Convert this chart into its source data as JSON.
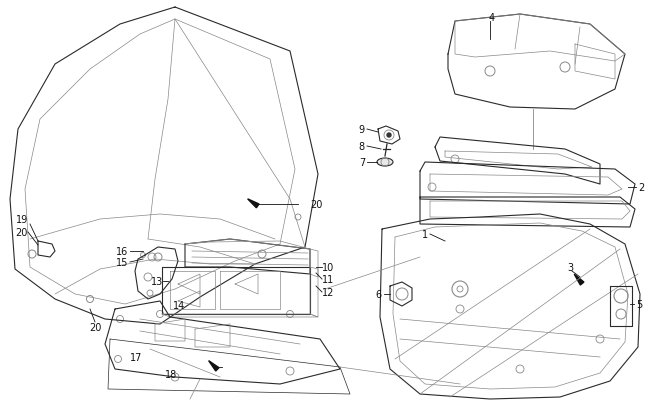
{
  "bg_color": "#ffffff",
  "lc": "#2a2a2a",
  "gc": "#888888",
  "dc": "#111111",
  "fig_width": 6.5,
  "fig_height": 4.06,
  "dpi": 100
}
